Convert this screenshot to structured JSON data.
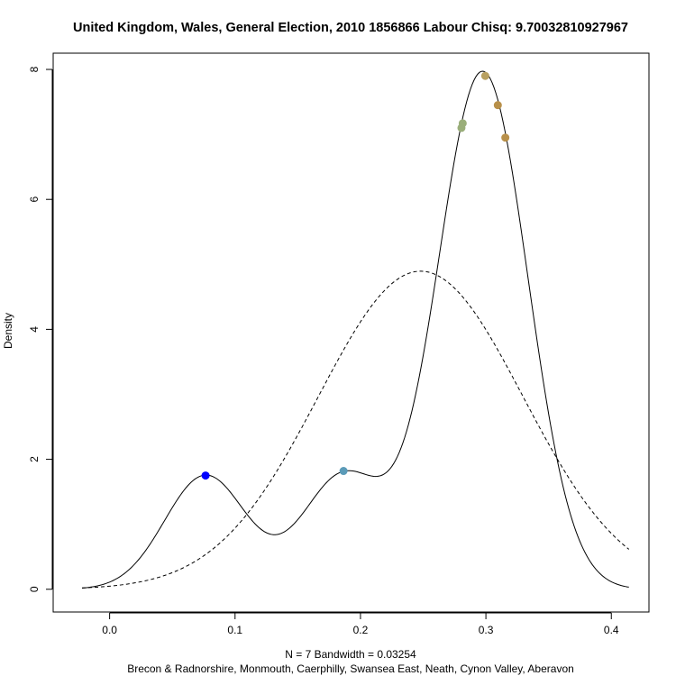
{
  "chart_data": {
    "type": "line",
    "title": "United Kingdom, Wales, General Election, 2010 1856866 Labour Chisq: 9.70032810927967",
    "ylabel": "Density",
    "xlabel_line1": "N = 7   Bandwidth = 0.03254",
    "xlabel_line2": "Brecon & Radnorshire, Monmouth, Caerphilly, Swansea East, Neath, Cynon Valley, Aberavon",
    "xlim": [
      -0.045,
      0.43
    ],
    "ylim": [
      -0.35,
      8.25
    ],
    "x_ticks": [
      0.0,
      0.1,
      0.2,
      0.3,
      0.4
    ],
    "x_tick_labels": [
      "0.0",
      "0.1",
      "0.2",
      "0.3",
      "0.4"
    ],
    "y_ticks": [
      0,
      2,
      4,
      6,
      8
    ],
    "y_tick_labels": [
      "0",
      "2",
      "4",
      "6",
      "8"
    ],
    "bandwidth": 0.03254,
    "n": 7,
    "kde_range": [
      -0.022,
      0.414
    ],
    "observations": [
      {
        "x": 0.0765,
        "y": 1.75,
        "color": "#0000ff"
      },
      {
        "x": 0.1865,
        "y": 1.82,
        "color": "#5b9bb8"
      },
      {
        "x": 0.2805,
        "y": 7.1,
        "color": "#9aae7a"
      },
      {
        "x": 0.2815,
        "y": 7.17,
        "color": "#9aae7a"
      },
      {
        "x": 0.2995,
        "y": 7.9,
        "color": "#b8a060"
      },
      {
        "x": 0.3095,
        "y": 7.45,
        "color": "#b8904a"
      },
      {
        "x": 0.3155,
        "y": 6.95,
        "color": "#b8904a"
      }
    ],
    "normal_reference": {
      "mean": 0.248,
      "sd": 0.0815,
      "x_range": [
        -0.022,
        0.414
      ],
      "style": "dashed"
    },
    "grid": false,
    "legend": "none"
  }
}
